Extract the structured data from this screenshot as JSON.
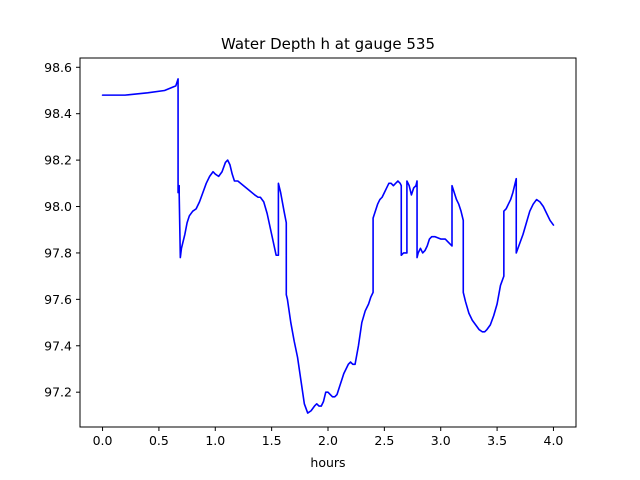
{
  "chart_data": {
    "type": "line",
    "title": "Water Depth h at gauge 535",
    "xlabel": "hours",
    "ylabel": "",
    "xlim": [
      -0.2,
      4.2
    ],
    "ylim": [
      97.05,
      98.64
    ],
    "x_ticks": [
      0.0,
      0.5,
      1.0,
      1.5,
      2.0,
      2.5,
      3.0,
      3.5,
      4.0
    ],
    "x_tick_labels": [
      "0.0",
      "0.5",
      "1.0",
      "1.5",
      "2.0",
      "2.5",
      "3.0",
      "3.5",
      "4.0"
    ],
    "y_ticks": [
      97.2,
      97.4,
      97.6,
      97.8,
      98.0,
      98.2,
      98.4,
      98.6
    ],
    "y_tick_labels": [
      "97.2",
      "97.4",
      "97.6",
      "97.8",
      "98.0",
      "98.2",
      "98.4",
      "98.6"
    ],
    "grid": false,
    "legend": false,
    "series": [
      {
        "color": "#0000ff",
        "x": [
          0.0,
          0.2,
          0.4,
          0.55,
          0.65,
          0.67,
          0.67,
          0.68,
          0.68,
          0.69,
          0.7,
          0.73,
          0.75,
          0.77,
          0.8,
          0.83,
          0.86,
          0.89,
          0.92,
          0.95,
          0.98,
          1.0,
          1.03,
          1.06,
          1.09,
          1.11,
          1.13,
          1.15,
          1.17,
          1.2,
          1.25,
          1.3,
          1.35,
          1.38,
          1.4,
          1.43,
          1.46,
          1.5,
          1.54,
          1.56,
          1.56,
          1.58,
          1.61,
          1.63,
          1.63,
          1.64,
          1.67,
          1.7,
          1.73,
          1.76,
          1.79,
          1.82,
          1.85,
          1.88,
          1.9,
          1.92,
          1.94,
          1.96,
          1.98,
          2.0,
          2.02,
          2.04,
          2.06,
          2.08,
          2.1,
          2.12,
          2.14,
          2.16,
          2.18,
          2.2,
          2.22,
          2.24,
          2.27,
          2.3,
          2.33,
          2.36,
          2.38,
          2.4,
          2.4,
          2.42,
          2.44,
          2.46,
          2.48,
          2.5,
          2.52,
          2.54,
          2.56,
          2.58,
          2.6,
          2.62,
          2.64,
          2.65,
          2.65,
          2.67,
          2.7,
          2.7,
          2.72,
          2.74,
          2.76,
          2.78,
          2.79,
          2.79,
          2.8,
          2.81,
          2.82,
          2.84,
          2.86,
          2.88,
          2.9,
          2.92,
          2.95,
          3.0,
          3.04,
          3.08,
          3.1,
          3.1,
          3.12,
          3.14,
          3.16,
          3.18,
          3.2,
          3.2,
          3.22,
          3.25,
          3.28,
          3.31,
          3.34,
          3.37,
          3.39,
          3.41,
          3.44,
          3.47,
          3.5,
          3.53,
          3.56,
          3.56,
          3.58,
          3.6,
          3.62,
          3.64,
          3.65,
          3.67,
          3.67,
          3.7,
          3.73,
          3.76,
          3.79,
          3.82,
          3.85,
          3.88,
          3.91,
          3.94,
          3.97,
          4.0
        ],
        "y": [
          98.48,
          98.48,
          98.49,
          98.5,
          98.52,
          98.55,
          98.06,
          98.09,
          98.05,
          97.78,
          97.82,
          97.88,
          97.93,
          97.96,
          97.98,
          97.99,
          98.02,
          98.06,
          98.1,
          98.13,
          98.15,
          98.14,
          98.13,
          98.15,
          98.19,
          98.2,
          98.18,
          98.14,
          98.11,
          98.11,
          98.09,
          98.07,
          98.05,
          98.04,
          98.04,
          98.02,
          97.97,
          97.88,
          97.79,
          97.79,
          98.1,
          98.06,
          97.98,
          97.93,
          97.62,
          97.6,
          97.5,
          97.42,
          97.35,
          97.25,
          97.15,
          97.11,
          97.12,
          97.14,
          97.15,
          97.14,
          97.14,
          97.16,
          97.2,
          97.2,
          97.19,
          97.18,
          97.18,
          97.19,
          97.22,
          97.25,
          97.28,
          97.3,
          97.32,
          97.33,
          97.32,
          97.32,
          97.4,
          97.5,
          97.55,
          97.58,
          97.61,
          97.63,
          97.95,
          97.98,
          98.01,
          98.03,
          98.04,
          98.06,
          98.08,
          98.1,
          98.1,
          98.09,
          98.1,
          98.11,
          98.1,
          98.09,
          97.79,
          97.8,
          97.8,
          98.11,
          98.09,
          98.05,
          98.08,
          98.09,
          98.11,
          97.78,
          97.8,
          97.81,
          97.82,
          97.8,
          97.81,
          97.83,
          97.86,
          97.87,
          97.87,
          97.86,
          97.86,
          97.84,
          97.83,
          98.09,
          98.06,
          98.03,
          98.01,
          97.98,
          97.94,
          97.63,
          97.59,
          97.54,
          97.51,
          97.49,
          97.47,
          97.46,
          97.46,
          97.47,
          97.49,
          97.53,
          97.58,
          97.66,
          97.7,
          97.98,
          97.99,
          98.01,
          98.03,
          98.06,
          98.08,
          98.12,
          97.8,
          97.84,
          97.88,
          97.93,
          97.98,
          98.01,
          98.03,
          98.02,
          98.0,
          97.97,
          97.94,
          97.92
        ]
      }
    ]
  }
}
